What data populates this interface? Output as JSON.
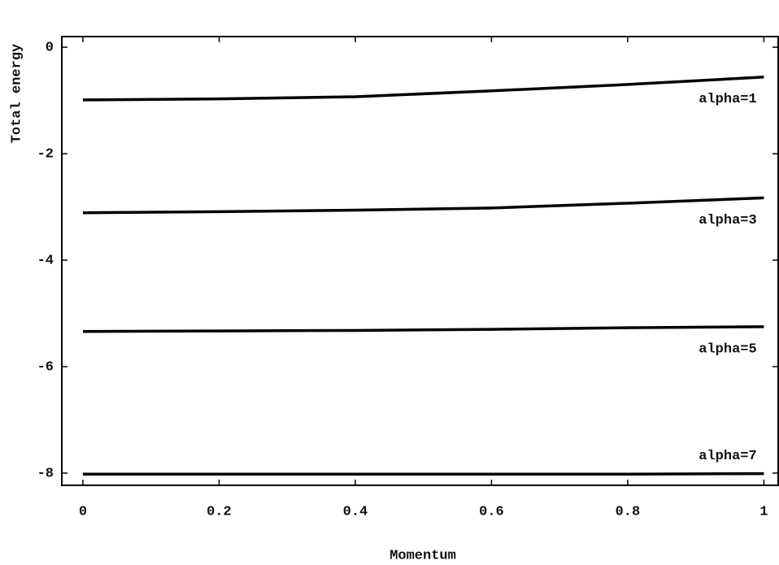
{
  "chart_data": {
    "type": "line",
    "x_label": "Momentum",
    "y_label": "Total energy",
    "x": [
      0,
      0.2,
      0.4,
      0.6,
      0.8,
      1
    ],
    "series": [
      {
        "name": "alpha=1",
        "color": "#000000",
        "values": [
          -0.99,
          -0.97,
          -0.93,
          -0.82,
          -0.7,
          -0.56
        ]
      },
      {
        "name": "alpha=3",
        "color": "#000000",
        "values": [
          -3.11,
          -3.09,
          -3.06,
          -3.02,
          -2.93,
          -2.83
        ]
      },
      {
        "name": "alpha=5",
        "color": "#000000",
        "values": [
          -5.34,
          -5.33,
          -5.32,
          -5.3,
          -5.27,
          -5.25
        ]
      },
      {
        "name": "alpha=7",
        "color": "#000000",
        "values": [
          -8.02,
          -8.02,
          -8.02,
          -8.02,
          -8.02,
          -8.01
        ]
      }
    ],
    "xlim": [
      -0.031,
      1.021
    ],
    "ylim": [
      -8.23,
      0.2
    ],
    "xticks": [
      0,
      0.2,
      0.4,
      0.6,
      0.8,
      1
    ],
    "yticks": [
      0,
      -2,
      -4,
      -6,
      -8
    ],
    "grid": false
  }
}
